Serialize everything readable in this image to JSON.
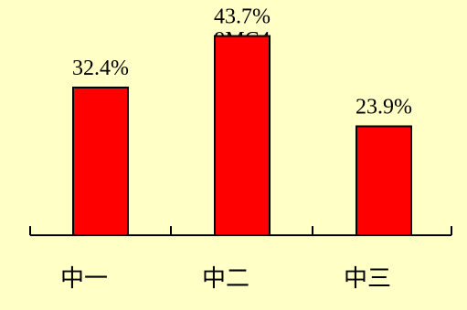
{
  "chart_data": {
    "type": "bar",
    "title": "9MC4",
    "categories": [
      "中一",
      "中二",
      "中三"
    ],
    "values": [
      32.4,
      43.7,
      23.9
    ],
    "value_labels": [
      "32.4%",
      "43.7%",
      "23.9%"
    ],
    "unit": "%",
    "xlabel": "",
    "ylabel": "",
    "ylim": [
      0,
      50
    ],
    "grid": false,
    "legend": "none",
    "colors": {
      "background": "#ffffc6",
      "bar_fill": "#ff0000",
      "bar_stroke": "#000000",
      "axis": "#000000"
    }
  }
}
